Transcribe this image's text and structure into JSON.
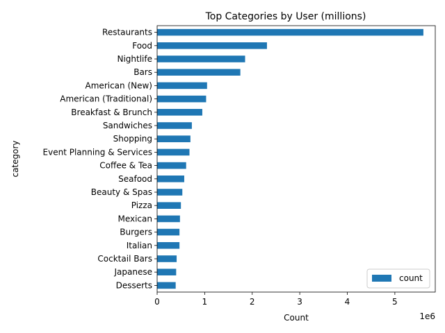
{
  "chart_data": {
    "type": "bar",
    "orientation": "horizontal",
    "title": "Top Categories by User (millions)",
    "xlabel": "Count",
    "ylabel": "category",
    "x_offset_label": "1e6",
    "xlim": [
      0,
      5.85
    ],
    "x_ticks": [
      0,
      1,
      2,
      3,
      4,
      5
    ],
    "grid": false,
    "legend_position": "bottom-right",
    "bar_color": "#1f77b4",
    "categories": [
      "Restaurants",
      "Food",
      "Nightlife",
      "Bars",
      "American (New)",
      "American (Traditional)",
      "Breakfast & Brunch",
      "Sandwiches",
      "Shopping",
      "Event Planning & Services",
      "Coffee & Tea",
      "Seafood",
      "Beauty & Spas",
      "Pizza",
      "Mexican",
      "Burgers",
      "Italian",
      "Cocktail Bars",
      "Japanese",
      "Desserts"
    ],
    "series": [
      {
        "name": "count",
        "values": [
          5.6,
          2.31,
          1.85,
          1.75,
          1.05,
          1.03,
          0.95,
          0.73,
          0.7,
          0.68,
          0.61,
          0.57,
          0.53,
          0.5,
          0.48,
          0.47,
          0.47,
          0.41,
          0.4,
          0.39
        ]
      }
    ]
  }
}
